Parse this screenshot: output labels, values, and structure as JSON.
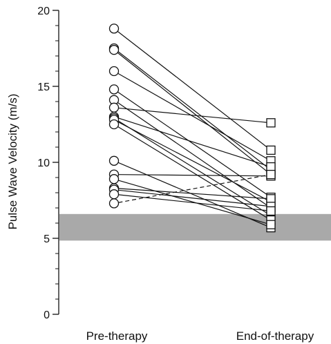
{
  "chart_data": {
    "type": "line",
    "title": "",
    "ylabel": "Pulse Wave Velocity (m/s)",
    "xlabel": "",
    "categories": [
      "Pre-therapy",
      "End-of-therapy"
    ],
    "ylim": [
      0,
      20
    ],
    "yticks": [
      0,
      5,
      10,
      15,
      20
    ],
    "yticks_minor": [
      1,
      2,
      3,
      4,
      6,
      7,
      8,
      9,
      11,
      12,
      13,
      14,
      16,
      17,
      18,
      19
    ],
    "grid": false,
    "legend": "none",
    "reference_band": {
      "from": 4.85,
      "to": 6.6,
      "color": "#a9a9a9"
    },
    "marker_pre": "circle",
    "marker_post": "square",
    "line_color": "#111111",
    "pairs": [
      {
        "pre": 18.8,
        "post": 10.8,
        "style": "solid"
      },
      {
        "pre": 17.5,
        "post": 9.5,
        "style": "solid"
      },
      {
        "pre": 17.4,
        "post": 9.2,
        "style": "solid"
      },
      {
        "pre": 16.0,
        "post": 10.1,
        "style": "solid"
      },
      {
        "pre": 14.8,
        "post": 7.7,
        "style": "solid"
      },
      {
        "pre": 14.1,
        "post": 7.0,
        "style": "solid"
      },
      {
        "pre": 13.6,
        "post": 12.6,
        "style": "solid"
      },
      {
        "pre": 13.0,
        "post": 9.7,
        "style": "solid"
      },
      {
        "pre": 12.9,
        "post": 6.5,
        "style": "solid"
      },
      {
        "pre": 12.8,
        "post": 7.4,
        "style": "solid"
      },
      {
        "pre": 12.5,
        "post": 6.2,
        "style": "solid"
      },
      {
        "pre": 10.1,
        "post": 5.7,
        "style": "solid"
      },
      {
        "pre": 9.2,
        "post": 9.1,
        "style": "solid"
      },
      {
        "pre": 8.9,
        "post": 5.9,
        "style": "solid"
      },
      {
        "pre": 8.3,
        "post": 7.6,
        "style": "solid"
      },
      {
        "pre": 8.2,
        "post": 7.1,
        "style": "solid"
      },
      {
        "pre": 7.9,
        "post": 6.8,
        "style": "solid"
      },
      {
        "pre": 7.3,
        "post": 9.2,
        "style": "dashed"
      }
    ]
  }
}
